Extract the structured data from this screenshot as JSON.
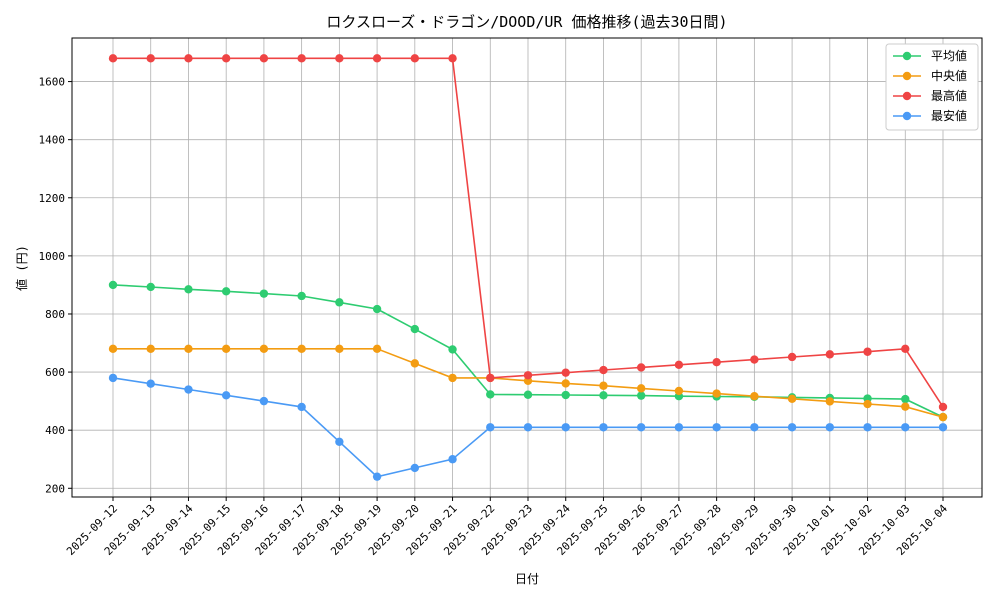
{
  "chart_data": {
    "type": "line",
    "title": "ロクスローズ・ドラゴン/DOOD/UR 価格推移(過去30日間)",
    "xlabel": "日付",
    "ylabel": "値 (円)",
    "ylim": [
      170,
      1750
    ],
    "yticks": [
      200,
      400,
      600,
      800,
      1000,
      1200,
      1400,
      1600
    ],
    "grid": true,
    "legend_position": "top-right",
    "categories": [
      "2025-09-12",
      "2025-09-13",
      "2025-09-14",
      "2025-09-15",
      "2025-09-16",
      "2025-09-17",
      "2025-09-18",
      "2025-09-19",
      "2025-09-20",
      "2025-09-21",
      "2025-09-22",
      "2025-09-23",
      "2025-09-24",
      "2025-09-25",
      "2025-09-26",
      "2025-09-27",
      "2025-09-28",
      "2025-09-29",
      "2025-09-30",
      "2025-10-01",
      "2025-10-02",
      "2025-10-03",
      "2025-10-04"
    ],
    "series": [
      {
        "name": "平均値",
        "color": "#2ecc71",
        "values": [
          900,
          893,
          885,
          878,
          870,
          862,
          840,
          817,
          748,
          678,
          523,
          522,
          521,
          520,
          519,
          517,
          516,
          515,
          513,
          511,
          509,
          507,
          445
        ]
      },
      {
        "name": "中央値",
        "color": "#f39c12",
        "values": [
          680,
          680,
          680,
          680,
          680,
          680,
          680,
          680,
          630,
          580,
          580,
          570,
          561,
          553,
          544,
          535,
          526,
          517,
          508,
          499,
          490,
          481,
          445
        ]
      },
      {
        "name": "最高値",
        "color": "#ef4444",
        "values": [
          1680,
          1680,
          1680,
          1680,
          1680,
          1680,
          1680,
          1680,
          1680,
          1680,
          580,
          589,
          598,
          607,
          616,
          625,
          634,
          643,
          652,
          661,
          670,
          680,
          480
        ]
      },
      {
        "name": "最安値",
        "color": "#4a9af5",
        "values": [
          580,
          560,
          540,
          520,
          500,
          480,
          360,
          240,
          270,
          300,
          410,
          410,
          410,
          410,
          410,
          410,
          410,
          410,
          410,
          410,
          410,
          410,
          410
        ]
      }
    ]
  }
}
